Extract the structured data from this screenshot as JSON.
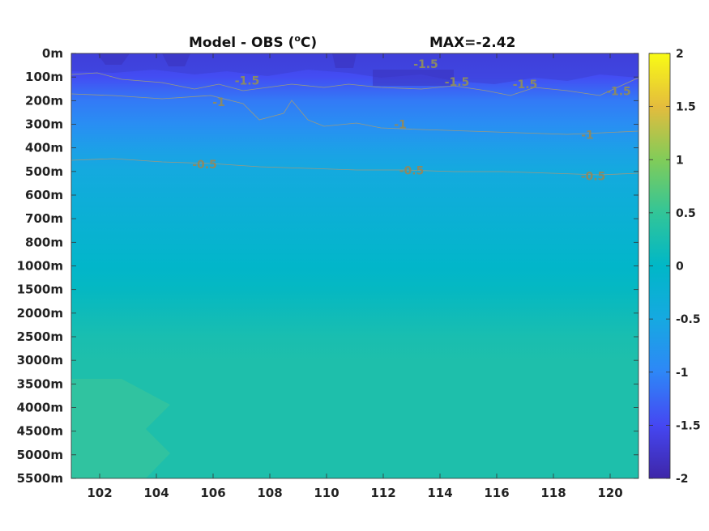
{
  "chart_data": {
    "type": "heatmap",
    "title_left": "Model - OBS (",
    "title_unit_sup": "o",
    "title_unit": "C)",
    "title_right": "MAX=-2.42",
    "x_ticks": [
      "102",
      "104",
      "106",
      "108",
      "110",
      "112",
      "114",
      "116",
      "118",
      "120"
    ],
    "xlim": [
      101,
      121
    ],
    "y_ticks": [
      "0m",
      "100m",
      "200m",
      "300m",
      "400m",
      "500m",
      "600m",
      "700m",
      "800m",
      "1000m",
      "1500m",
      "2000m",
      "2500m",
      "3000m",
      "3500m",
      "4000m",
      "4500m",
      "5000m",
      "5500m"
    ],
    "colorbar": {
      "ticks": [
        "2",
        "1.5",
        "1",
        "0.5",
        "0",
        "-0.5",
        "-1",
        "-1.5",
        "-2"
      ],
      "range": [
        -2,
        2
      ],
      "colormap": "parula"
    },
    "contour_labels": [
      {
        "text": "-1.5",
        "lon": 113.5,
        "level": 0.45
      },
      {
        "text": "-1.5",
        "lon": 107.2,
        "level": 1.15
      },
      {
        "text": "-1.5",
        "lon": 114.6,
        "level": 1.2
      },
      {
        "text": "-1.5",
        "lon": 117.0,
        "level": 1.3
      },
      {
        "text": "-1.5",
        "lon": 120.3,
        "level": 1.6
      },
      {
        "text": "-1",
        "lon": 106.2,
        "level": 2.05
      },
      {
        "text": "-1",
        "lon": 112.6,
        "level": 3.0
      },
      {
        "text": "-1",
        "lon": 119.2,
        "level": 3.45
      },
      {
        "text": "-0.5",
        "lon": 105.7,
        "level": 4.7
      },
      {
        "text": "-0.5",
        "lon": 113.0,
        "level": 4.95
      },
      {
        "text": "-0.5",
        "lon": 119.4,
        "level": 5.2
      }
    ],
    "depth_profile": [
      {
        "level": 0,
        "value": -1.6
      },
      {
        "level": 1,
        "value": -1.45
      },
      {
        "level": 2,
        "value": -1.1
      },
      {
        "level": 3,
        "value": -0.9
      },
      {
        "level": 4,
        "value": -0.65
      },
      {
        "level": 5,
        "value": -0.45
      },
      {
        "level": 6,
        "value": -0.35
      },
      {
        "level": 7,
        "value": -0.25
      },
      {
        "level": 8,
        "value": -0.15
      },
      {
        "level": 9,
        "value": -0.05
      },
      {
        "level": 10,
        "value": 0.05
      },
      {
        "level": 11,
        "value": 0.15
      },
      {
        "level": 12,
        "value": 0.25
      },
      {
        "level": 13,
        "value": 0.3
      },
      {
        "level": 14,
        "value": 0.3
      },
      {
        "level": 15,
        "value": 0.3
      },
      {
        "level": 16,
        "value": 0.3
      },
      {
        "level": 17,
        "value": 0.3
      },
      {
        "level": 18,
        "value": 0.3
      }
    ]
  }
}
